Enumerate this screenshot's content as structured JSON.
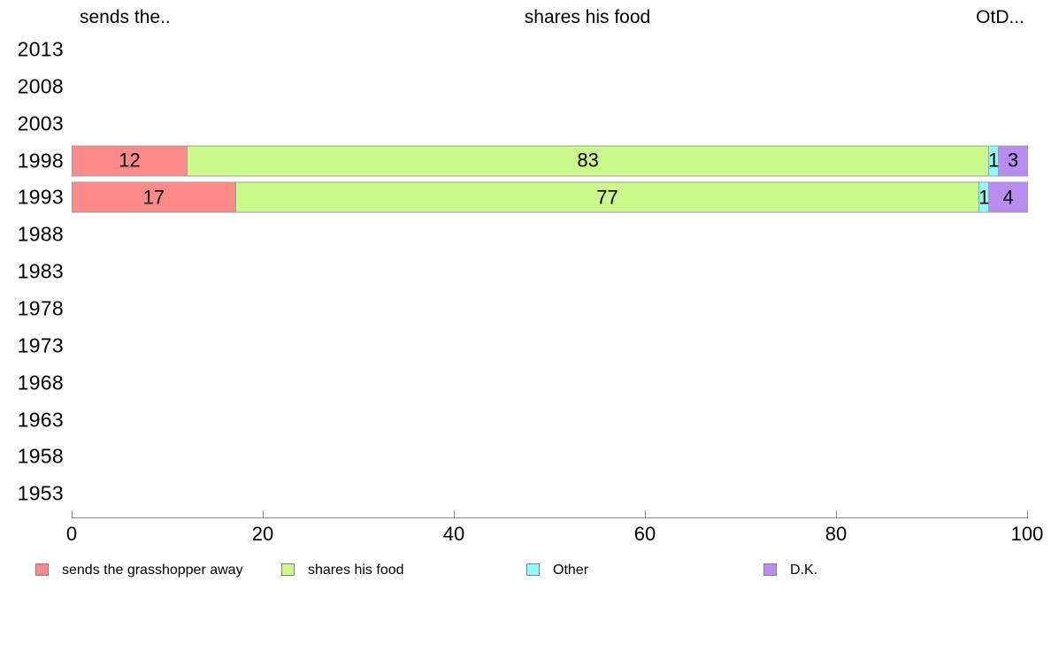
{
  "header": {
    "left": "sends the..",
    "center": "shares his food",
    "right": "OtD..."
  },
  "chart_data": {
    "type": "bar",
    "orientation": "horizontal",
    "stacked": true,
    "title": "",
    "xlabel": "",
    "ylabel": "",
    "xlim": [
      0,
      100
    ],
    "xticks": [
      "0",
      "20",
      "40",
      "60",
      "80",
      "100"
    ],
    "grid": false,
    "legend_position": "bottom",
    "categories": [
      "2013",
      "2008",
      "2003",
      "1998",
      "1993",
      "1988",
      "1983",
      "1978",
      "1973",
      "1968",
      "1963",
      "1958",
      "1953"
    ],
    "series": [
      {
        "name": "sends the grasshopper away",
        "color": "#FF8A8A",
        "values": [
          null,
          null,
          null,
          12,
          17,
          null,
          null,
          null,
          null,
          null,
          null,
          null,
          null
        ]
      },
      {
        "name": "shares his food",
        "color": "#CCF98C",
        "values": [
          null,
          null,
          null,
          83,
          77,
          null,
          null,
          null,
          null,
          null,
          null,
          null,
          null
        ]
      },
      {
        "name": "Other",
        "color": "#90FAFA",
        "values": [
          null,
          null,
          null,
          1,
          1,
          null,
          null,
          null,
          null,
          null,
          null,
          null,
          null
        ]
      },
      {
        "name": "D.K.",
        "color": "#B98DEF",
        "values": [
          null,
          null,
          null,
          3,
          4,
          null,
          null,
          null,
          null,
          null,
          null,
          null,
          null
        ]
      }
    ]
  },
  "legend": [
    {
      "label": "sends the grasshopper away",
      "color": "#FF8A8A"
    },
    {
      "label": "shares his food",
      "color": "#CCF98C"
    },
    {
      "label": "Other",
      "color": "#90FAFA"
    },
    {
      "label": "D.K.",
      "color": "#B98DEF"
    }
  ]
}
